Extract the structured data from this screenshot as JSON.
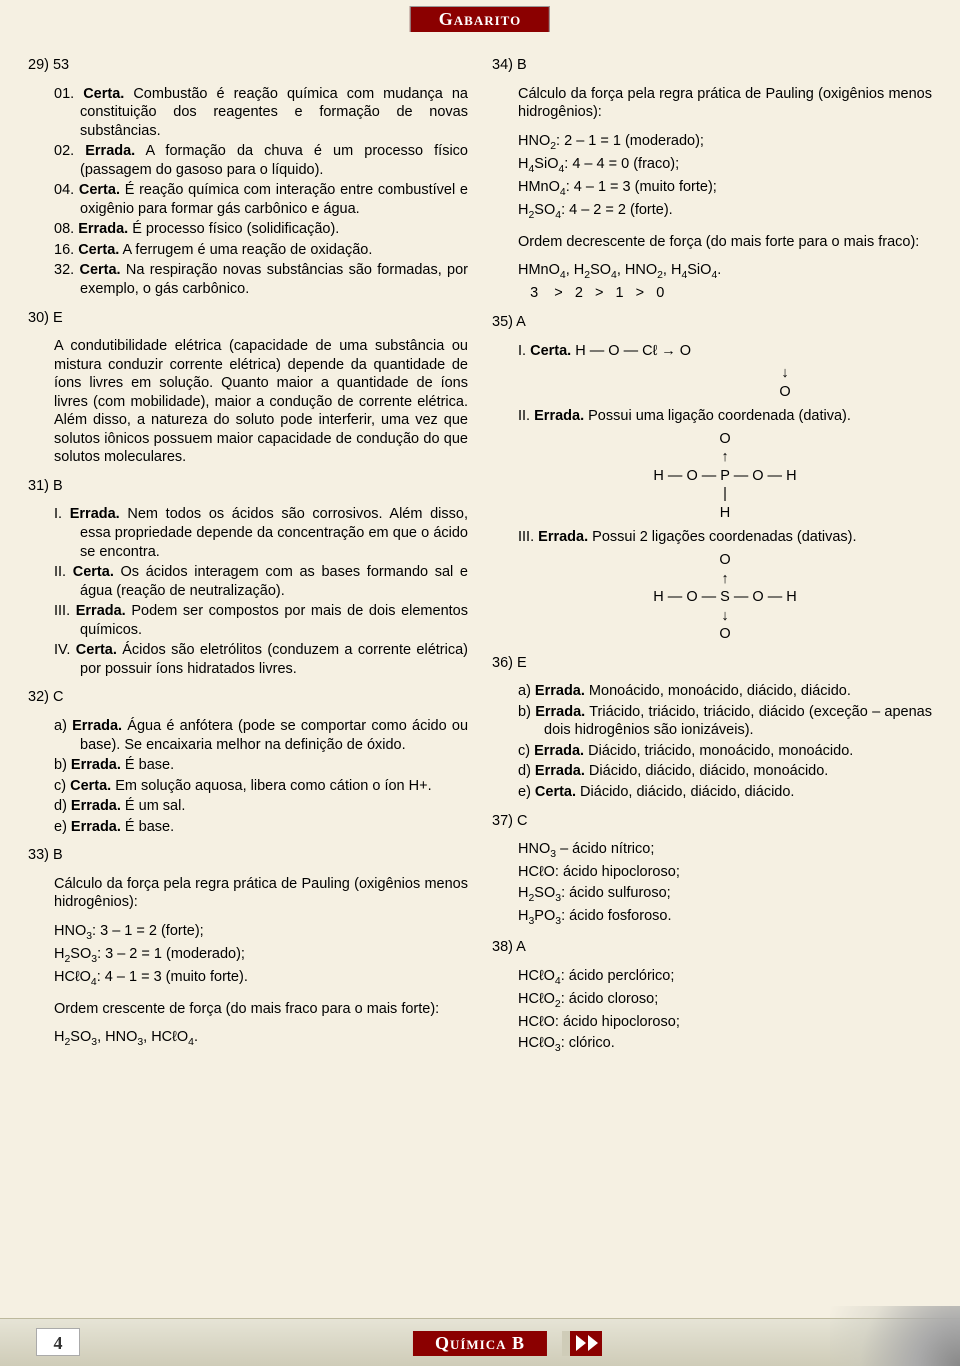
{
  "header": {
    "label": "Gabarito"
  },
  "footer": {
    "page_number": "4",
    "subject": "Química B"
  },
  "left": {
    "q29": {
      "num": "29) 53",
      "i01": "01. <b>Certa.</b> Combustão é reação química com mudança na constituição dos reagentes e formação de novas substâncias.",
      "i02": "02. <b>Errada.</b> A formação da chuva é um processo físico (passagem do gasoso para o líquido).",
      "i04": "04. <b>Certa.</b> É reação química com interação entre combustível e oxigênio para formar gás carbônico e água.",
      "i08": "08. <b>Errada.</b> É processo físico (solidificação).",
      "i16": "16. <b>Certa.</b> A ferrugem é uma reação de oxidação.",
      "i32": "32. <b>Certa.</b> Na respiração novas substâncias são formadas, por exemplo, o gás carbônico."
    },
    "q30": {
      "num": "30) E",
      "body": "A condutibilidade elétrica (capacidade de uma substância ou mistura conduzir corrente elétrica) depende da quantidade de íons livres em solução. Quanto maior a quantidade de íons livres (com mobilidade), maior a condução de corrente elétrica. Além disso, a natureza do soluto pode interferir, uma vez que solutos iônicos possuem maior capacidade de condução do que solutos moleculares."
    },
    "q31": {
      "num": "31) B",
      "i1": "I. <b>Errada.</b> Nem todos os ácidos são corrosivos. Além disso, essa propriedade depende da concentração em que o ácido se encontra.",
      "i2": "II. <b>Certa.</b> Os ácidos interagem com as bases formando sal e água (reação de neutralização).",
      "i3": "III. <b>Errada.</b> Podem ser compostos por mais de dois elementos químicos.",
      "i4": "IV. <b>Certa.</b> Ácidos são eletrólitos (conduzem a corrente elétrica) por possuir íons hidratados livres."
    },
    "q32": {
      "num": "32) C",
      "a": "a) <b>Errada.</b> Água é anfótera (pode se comportar como ácido ou base). Se encaixaria melhor na definição de óxido.",
      "b": "b) <b>Errada.</b> É base.",
      "c": "c) <b>Certa.</b> Em solução aquosa, libera como cátion o íon H+.",
      "d": "d) <b>Errada.</b> É um sal.",
      "e": "e) <b>Errada.</b> É base."
    },
    "q33": {
      "num": "33) B",
      "intro": "Cálculo da força pela regra prática de Pauling (oxigênios menos hidrogênios):",
      "l1": "HNO<span class='sub'>3</span>: 3 – 1 = 2 (forte);",
      "l2": "H<span class='sub'>2</span>SO<span class='sub'>3</span>: 3 – 2 = 1 (moderado);",
      "l3": "HCℓO<span class='sub'>4</span>: 4 – 1 = 3 (muito forte).",
      "order_label": "Ordem crescente de força (do mais fraco para o mais forte):",
      "order": "H<span class='sub'>2</span>SO<span class='sub'>3</span>, HNO<span class='sub'>3</span>, HCℓO<span class='sub'>4</span>."
    }
  },
  "right": {
    "q34": {
      "num": "34) B",
      "intro": "Cálculo da força pela regra prática de Pauling (oxigênios menos hidrogênios):",
      "l1": "HNO<span class='sub'>2</span>: 2 – 1 = 1 (moderado);",
      "l2": "H<span class='sub'>4</span>SiO<span class='sub'>4</span>: 4 – 4 = 0 (fraco);",
      "l3": "HMnO<span class='sub'>4</span>: 4 – 1 = 3 (muito forte);",
      "l4": "H<span class='sub'>2</span>SO<span class='sub'>4</span>: 4 – 2 = 2 (forte).",
      "order_label": "Ordem decrescente de força (do mais forte para o mais fraco):",
      "order1": "HMnO<span class='sub'>4</span>, H<span class='sub'>2</span>SO<span class='sub'>4</span>, HNO<span class='sub'>2</span>, H<span class='sub'>4</span>SiO<span class='sub'>4</span>.",
      "order2": "&nbsp;&nbsp;&nbsp;3&nbsp;&nbsp;&nbsp;&nbsp;&gt;&nbsp;&nbsp;&nbsp;2&nbsp;&nbsp;&nbsp;&gt;&nbsp;&nbsp;&nbsp;1&nbsp;&nbsp;&nbsp;&gt;&nbsp;&nbsp;&nbsp;0"
    },
    "q35": {
      "num": "35) A",
      "i1_label": "I. <b>Certa.</b> H — O — Cℓ → O",
      "i1_sub": "↓",
      "i1_sub2": "O",
      "i2": "II. <b>Errada.</b> Possui uma ligação coordenada (dativa).",
      "i3": "III. <b>Errada.</b> Possui 2 ligações coordenadas (dativas)."
    },
    "q36": {
      "num": "36) E",
      "a": "a) <b>Errada.</b> Monoácido, monoácido, diácido, diácido.",
      "b": "b) <b>Errada.</b> Triácido, triácido, triácido, diácido (exceção – apenas dois hidrogênios são ionizáveis).",
      "c": "c) <b>Errada.</b> Diácido, triácido, monoácido, monoácido.",
      "d": "d) <b>Errada.</b> Diácido, diácido, diácido, monoácido.",
      "e": "e) <b>Certa.</b> Diácido, diácido, diácido, diácido."
    },
    "q37": {
      "num": "37) C",
      "l1": "HNO<span class='sub'>3</span> – ácido nítrico;",
      "l2": "HCℓO: ácido hipocloroso;",
      "l3": "H<span class='sub'>2</span>SO<span class='sub'>3</span>: ácido sulfuroso;",
      "l4": "H<span class='sub'>3</span>PO<span class='sub'>3</span>: ácido fosforoso."
    },
    "q38": {
      "num": "38) A",
      "l1": "HCℓO<span class='sub'>4</span>: ácido perclórico;",
      "l2": "HCℓO<span class='sub'>2</span>: ácido cloroso;",
      "l3": "HCℓO: ácido hipocloroso;",
      "l4": "HCℓO<span class='sub'>3</span>: clórico."
    }
  }
}
